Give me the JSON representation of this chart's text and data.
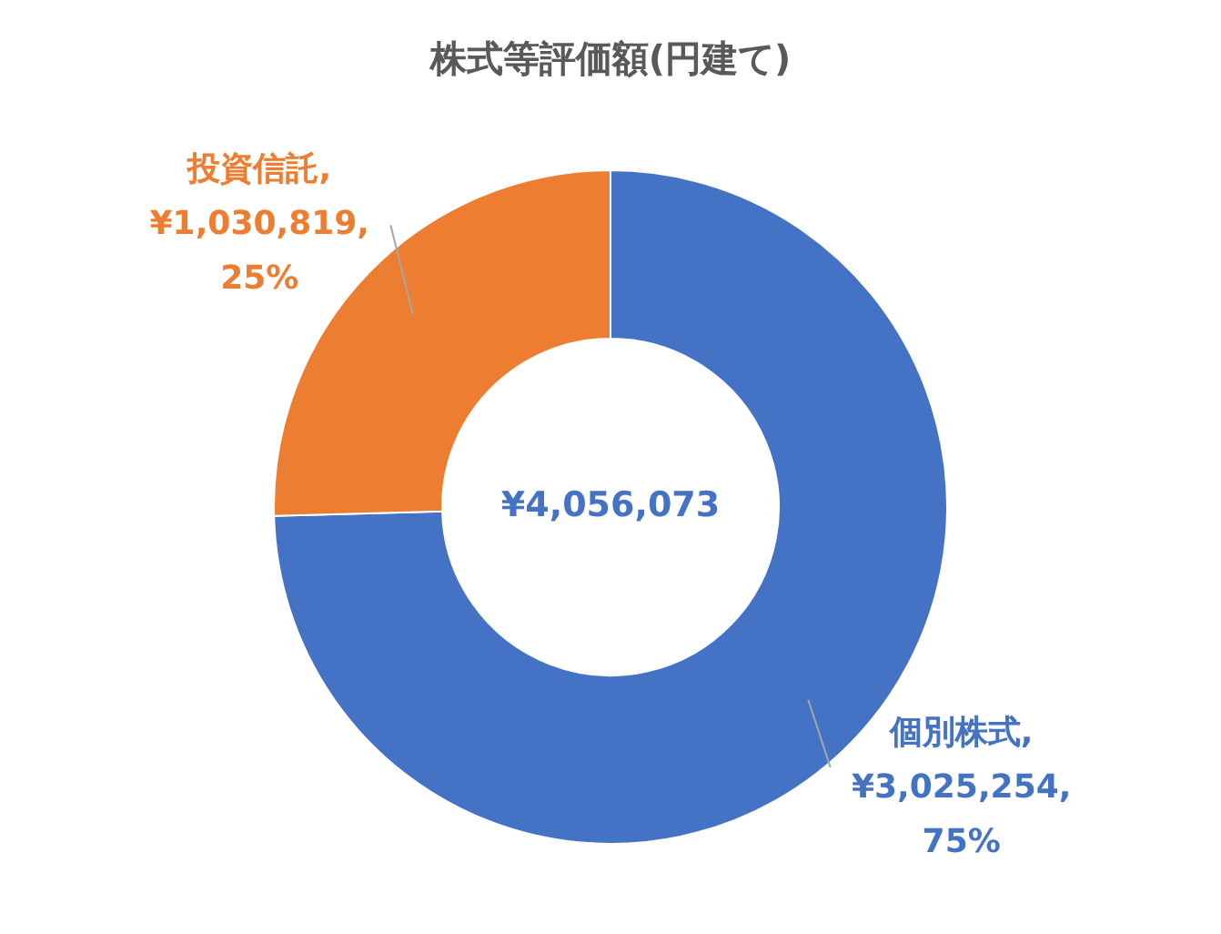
{
  "chart_data": {
    "type": "donut",
    "title": "株式等評価額(円建て)",
    "categories": [
      "個別株式",
      "投資信託"
    ],
    "values": [
      3025254,
      1030819
    ],
    "colors": [
      "#4472c4",
      "#ed7d31"
    ],
    "value_labels": [
      ", ¥3,025,254, 75%",
      ", ¥1,030,819, 25%"
    ],
    "annotations": [
      "¥4,056,073"
    ],
    "legend": false
  }
}
